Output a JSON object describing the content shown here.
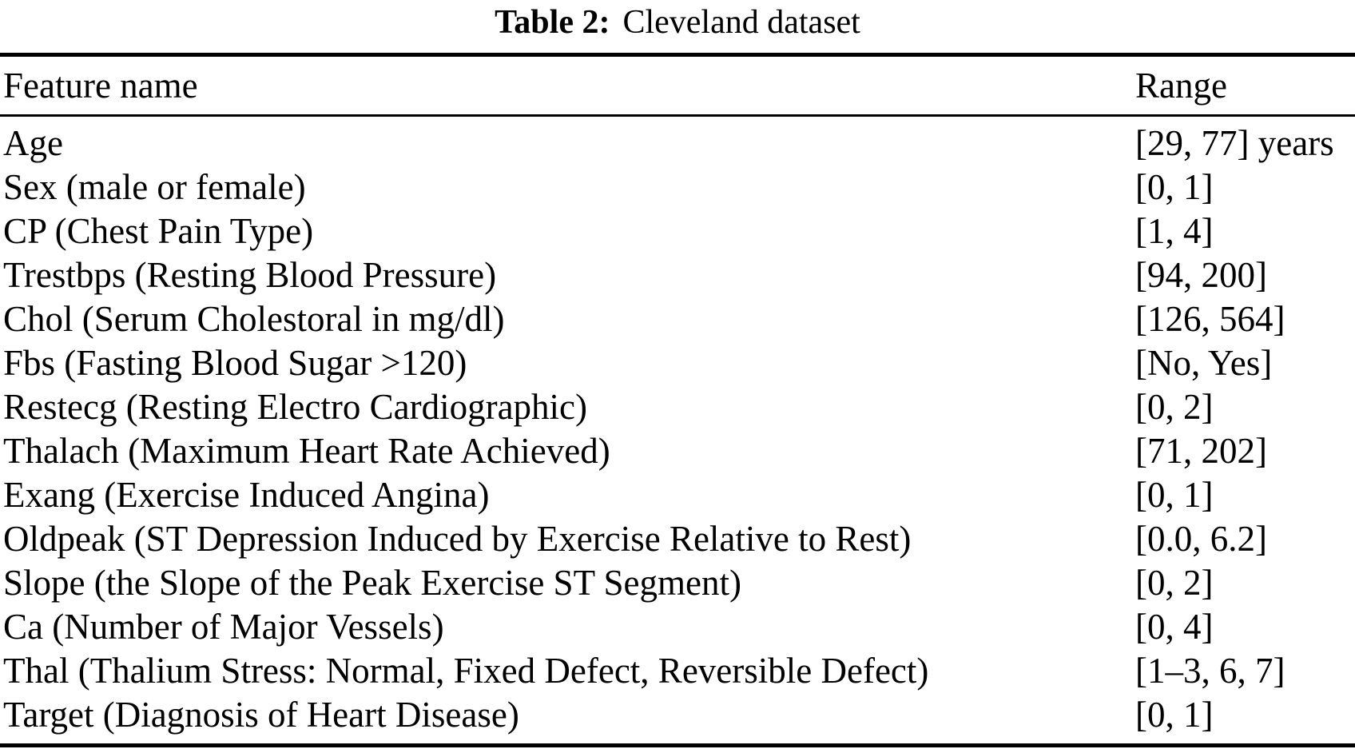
{
  "page": {
    "background_color": "#ffffff",
    "text_color": "#000000"
  },
  "caption": {
    "label": "Table 2:",
    "title": "Cleveland dataset"
  },
  "table": {
    "columns": {
      "feature": "Feature name",
      "range": "Range"
    },
    "rows": [
      {
        "feature": "Age",
        "range": "[29, 77] years"
      },
      {
        "feature": "Sex (male or female)",
        "range": "[0, 1]"
      },
      {
        "feature": "CP (Chest Pain Type)",
        "range": "[1, 4]"
      },
      {
        "feature": "Trestbps (Resting Blood Pressure)",
        "range": "[94, 200]"
      },
      {
        "feature": "Chol (Serum Cholestoral in mg/dl)",
        "range": "[126, 564]"
      },
      {
        "feature": "Fbs (Fasting Blood Sugar >120)",
        "range": "[No, Yes]"
      },
      {
        "feature": "Restecg (Resting Electro Cardiographic)",
        "range": "[0, 2]"
      },
      {
        "feature": "Thalach (Maximum Heart Rate Achieved)",
        "range": "[71, 202]"
      },
      {
        "feature": "Exang (Exercise Induced Angina)",
        "range": "[0, 1]"
      },
      {
        "feature": "Oldpeak (ST Depression Induced by Exercise Relative to Rest)",
        "range": "[0.0, 6.2]"
      },
      {
        "feature": "Slope (the Slope of the Peak Exercise ST Segment)",
        "range": "[0, 2]"
      },
      {
        "feature": "Ca (Number of Major Vessels)",
        "range": "[0, 4]"
      },
      {
        "feature": "Thal (Thalium Stress: Normal, Fixed Defect, Reversible Defect)",
        "range": "[1–3, 6, 7]"
      },
      {
        "feature": "Target (Diagnosis of Heart Disease)",
        "range": "[0, 1]"
      }
    ]
  }
}
